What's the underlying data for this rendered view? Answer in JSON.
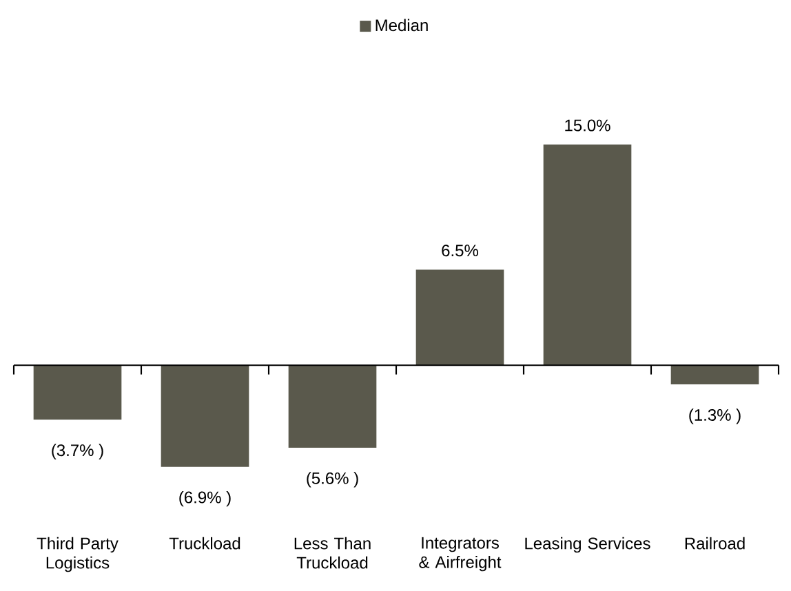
{
  "chart_data": {
    "type": "bar",
    "categories": [
      "Third Party Logistics",
      "Truckload",
      "Less Than Truckload",
      "Integrators & Airfreight",
      "Leasing Services",
      "Railroad"
    ],
    "series": [
      {
        "name": "Median",
        "color": "#5a594c",
        "values": [
          -3.7,
          -6.9,
          -5.6,
          6.5,
          15.0,
          -1.3
        ],
        "value_labels": [
          "(3.7% )",
          "(6.9% )",
          "(5.6% )",
          "6.5%",
          "15.0%",
          "(1.3% )"
        ]
      }
    ],
    "legend": "top"
  }
}
